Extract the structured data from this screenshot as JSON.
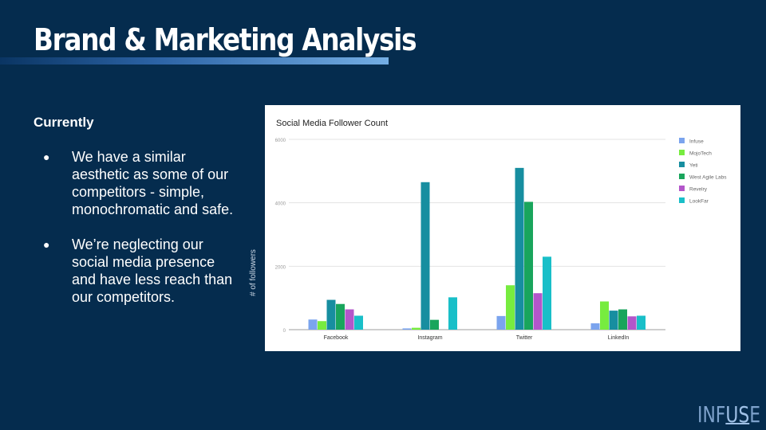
{
  "slide": {
    "title": "Brand & Marketing Analysis",
    "subhead": "Currently",
    "bullets": [
      "We have a similar aesthetic as some of our competitors - simple, monochromatic and safe.",
      "We’re neglecting our social media presence and have less reach than our competitors."
    ],
    "logo": {
      "pre": "INF",
      "mid": "US",
      "post": "E"
    }
  },
  "chart_data": {
    "type": "bar",
    "title": "Social Media Follower Count",
    "xlabel": "",
    "ylabel": "# of followers",
    "ylim": [
      0,
      6000
    ],
    "yticks": [
      "0",
      "2000",
      "4000",
      "6000"
    ],
    "categories": [
      "Facebook",
      "Instagram",
      "Twitter",
      "LinkedIn"
    ],
    "legend_position": "right",
    "grid": true,
    "series": [
      {
        "name": "Infuse",
        "color": "#7ba4ee",
        "values": [
          320,
          40,
          430,
          200
        ]
      },
      {
        "name": "MojoTech",
        "color": "#77ec3f",
        "values": [
          270,
          60,
          1400,
          890
        ]
      },
      {
        "name": "Yeti",
        "color": "#178ea0",
        "values": [
          940,
          4650,
          5100,
          600
        ]
      },
      {
        "name": "West Agile Labs",
        "color": "#19a55c",
        "values": [
          810,
          310,
          4030,
          640
        ]
      },
      {
        "name": "Revelry",
        "color": "#b356ca",
        "values": [
          640,
          0,
          1150,
          420
        ]
      },
      {
        "name": "LookFar",
        "color": "#19bfc8",
        "values": [
          440,
          1020,
          2300,
          440
        ]
      }
    ]
  }
}
